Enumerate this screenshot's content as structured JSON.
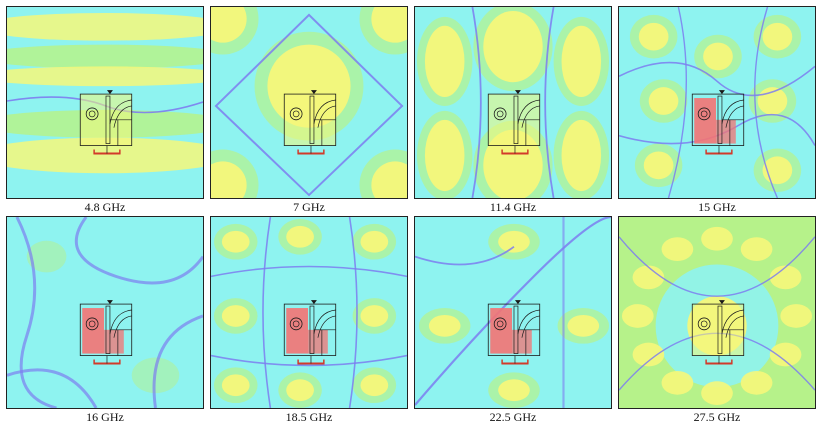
{
  "panels": [
    {
      "id": "p1",
      "caption": "4.8 GHz",
      "pattern": "bands",
      "hot": 0
    },
    {
      "id": "p2",
      "caption": "7 GHz",
      "pattern": "diamond",
      "hot": 0
    },
    {
      "id": "p3",
      "caption": "11.4 GHz",
      "pattern": "lobes",
      "hot": 0
    },
    {
      "id": "p4",
      "caption": "15 GHz",
      "pattern": "mesh",
      "hot": 1
    },
    {
      "id": "p5",
      "caption": "16 GHz",
      "pattern": "swirl",
      "hot": 1
    },
    {
      "id": "p6",
      "caption": "18.5 GHz",
      "pattern": "grid",
      "hot": 1
    },
    {
      "id": "p7",
      "caption": "22.5 GHz",
      "pattern": "cross",
      "hot": 1
    },
    {
      "id": "p8",
      "caption": "27.5 GHz",
      "pattern": "rings",
      "hot": 0
    }
  ],
  "colors": {
    "cyan": "#8ef3f0",
    "green": "#b6f28a",
    "yellow": "#f6f77a",
    "blue": "#7d7df0",
    "red": "#f47373",
    "feed": "#d23a2a"
  }
}
